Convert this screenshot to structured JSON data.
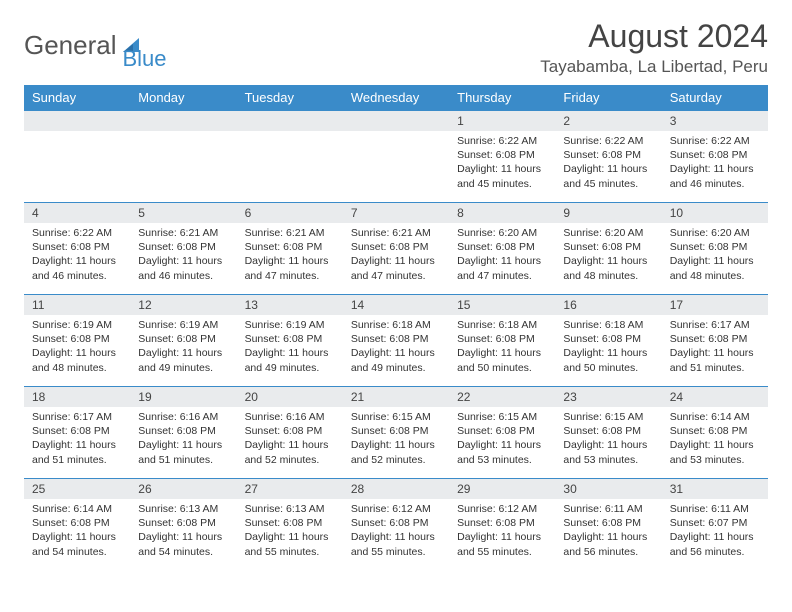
{
  "logo": {
    "text1": "General",
    "text2": "Blue"
  },
  "title": "August 2024",
  "location": "Tayabamba, La Libertad, Peru",
  "colors": {
    "header_bg": "#3a8bc9",
    "header_text": "#ffffff",
    "daynum_bg": "#e9ebed",
    "border": "#3a8bc9",
    "text": "#333333"
  },
  "weekdays": [
    "Sunday",
    "Monday",
    "Tuesday",
    "Wednesday",
    "Thursday",
    "Friday",
    "Saturday"
  ],
  "weeks": [
    [
      null,
      null,
      null,
      null,
      {
        "n": "1",
        "sr": "6:22 AM",
        "ss": "6:08 PM",
        "dl": "11 hours and 45 minutes."
      },
      {
        "n": "2",
        "sr": "6:22 AM",
        "ss": "6:08 PM",
        "dl": "11 hours and 45 minutes."
      },
      {
        "n": "3",
        "sr": "6:22 AM",
        "ss": "6:08 PM",
        "dl": "11 hours and 46 minutes."
      }
    ],
    [
      {
        "n": "4",
        "sr": "6:22 AM",
        "ss": "6:08 PM",
        "dl": "11 hours and 46 minutes."
      },
      {
        "n": "5",
        "sr": "6:21 AM",
        "ss": "6:08 PM",
        "dl": "11 hours and 46 minutes."
      },
      {
        "n": "6",
        "sr": "6:21 AM",
        "ss": "6:08 PM",
        "dl": "11 hours and 47 minutes."
      },
      {
        "n": "7",
        "sr": "6:21 AM",
        "ss": "6:08 PM",
        "dl": "11 hours and 47 minutes."
      },
      {
        "n": "8",
        "sr": "6:20 AM",
        "ss": "6:08 PM",
        "dl": "11 hours and 47 minutes."
      },
      {
        "n": "9",
        "sr": "6:20 AM",
        "ss": "6:08 PM",
        "dl": "11 hours and 48 minutes."
      },
      {
        "n": "10",
        "sr": "6:20 AM",
        "ss": "6:08 PM",
        "dl": "11 hours and 48 minutes."
      }
    ],
    [
      {
        "n": "11",
        "sr": "6:19 AM",
        "ss": "6:08 PM",
        "dl": "11 hours and 48 minutes."
      },
      {
        "n": "12",
        "sr": "6:19 AM",
        "ss": "6:08 PM",
        "dl": "11 hours and 49 minutes."
      },
      {
        "n": "13",
        "sr": "6:19 AM",
        "ss": "6:08 PM",
        "dl": "11 hours and 49 minutes."
      },
      {
        "n": "14",
        "sr": "6:18 AM",
        "ss": "6:08 PM",
        "dl": "11 hours and 49 minutes."
      },
      {
        "n": "15",
        "sr": "6:18 AM",
        "ss": "6:08 PM",
        "dl": "11 hours and 50 minutes."
      },
      {
        "n": "16",
        "sr": "6:18 AM",
        "ss": "6:08 PM",
        "dl": "11 hours and 50 minutes."
      },
      {
        "n": "17",
        "sr": "6:17 AM",
        "ss": "6:08 PM",
        "dl": "11 hours and 51 minutes."
      }
    ],
    [
      {
        "n": "18",
        "sr": "6:17 AM",
        "ss": "6:08 PM",
        "dl": "11 hours and 51 minutes."
      },
      {
        "n": "19",
        "sr": "6:16 AM",
        "ss": "6:08 PM",
        "dl": "11 hours and 51 minutes."
      },
      {
        "n": "20",
        "sr": "6:16 AM",
        "ss": "6:08 PM",
        "dl": "11 hours and 52 minutes."
      },
      {
        "n": "21",
        "sr": "6:15 AM",
        "ss": "6:08 PM",
        "dl": "11 hours and 52 minutes."
      },
      {
        "n": "22",
        "sr": "6:15 AM",
        "ss": "6:08 PM",
        "dl": "11 hours and 53 minutes."
      },
      {
        "n": "23",
        "sr": "6:15 AM",
        "ss": "6:08 PM",
        "dl": "11 hours and 53 minutes."
      },
      {
        "n": "24",
        "sr": "6:14 AM",
        "ss": "6:08 PM",
        "dl": "11 hours and 53 minutes."
      }
    ],
    [
      {
        "n": "25",
        "sr": "6:14 AM",
        "ss": "6:08 PM",
        "dl": "11 hours and 54 minutes."
      },
      {
        "n": "26",
        "sr": "6:13 AM",
        "ss": "6:08 PM",
        "dl": "11 hours and 54 minutes."
      },
      {
        "n": "27",
        "sr": "6:13 AM",
        "ss": "6:08 PM",
        "dl": "11 hours and 55 minutes."
      },
      {
        "n": "28",
        "sr": "6:12 AM",
        "ss": "6:08 PM",
        "dl": "11 hours and 55 minutes."
      },
      {
        "n": "29",
        "sr": "6:12 AM",
        "ss": "6:08 PM",
        "dl": "11 hours and 55 minutes."
      },
      {
        "n": "30",
        "sr": "6:11 AM",
        "ss": "6:08 PM",
        "dl": "11 hours and 56 minutes."
      },
      {
        "n": "31",
        "sr": "6:11 AM",
        "ss": "6:07 PM",
        "dl": "11 hours and 56 minutes."
      }
    ]
  ],
  "labels": {
    "sunrise": "Sunrise:",
    "sunset": "Sunset:",
    "daylight": "Daylight:"
  }
}
